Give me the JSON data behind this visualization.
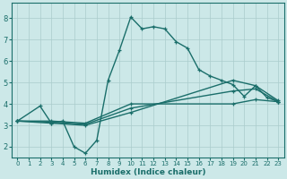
{
  "xlabel": "Humidex (Indice chaleur)",
  "bg_color": "#cce8e8",
  "grid_color": "#aacccc",
  "line_color": "#1a6e6a",
  "xlim": [
    -0.5,
    23.5
  ],
  "ylim": [
    1.5,
    8.7
  ],
  "xticks": [
    0,
    1,
    2,
    3,
    4,
    5,
    6,
    7,
    8,
    9,
    10,
    11,
    12,
    13,
    14,
    15,
    16,
    17,
    18,
    19,
    20,
    21,
    22,
    23
  ],
  "yticks": [
    2,
    3,
    4,
    5,
    6,
    7,
    8
  ],
  "lines": [
    {
      "x": [
        0,
        2,
        3,
        4,
        5,
        6,
        7,
        8,
        9,
        10,
        11,
        12,
        13,
        14,
        15,
        16,
        17,
        18,
        19,
        20,
        21,
        22,
        23
      ],
      "y": [
        3.2,
        3.9,
        3.1,
        3.2,
        2.0,
        1.7,
        2.3,
        5.1,
        6.5,
        8.05,
        7.5,
        7.6,
        7.5,
        6.9,
        6.6,
        5.6,
        5.3,
        5.1,
        4.9,
        4.35,
        4.85,
        4.3,
        4.1
      ]
    },
    {
      "x": [
        0,
        3,
        6,
        10,
        19,
        21,
        23
      ],
      "y": [
        3.2,
        3.1,
        3.0,
        3.6,
        5.1,
        4.85,
        4.15
      ]
    },
    {
      "x": [
        0,
        3,
        6,
        10,
        19,
        21,
        23
      ],
      "y": [
        3.2,
        3.15,
        3.05,
        3.8,
        4.6,
        4.7,
        4.1
      ]
    },
    {
      "x": [
        0,
        3,
        6,
        10,
        19,
        21,
        23
      ],
      "y": [
        3.2,
        3.2,
        3.1,
        4.0,
        4.0,
        4.2,
        4.1
      ]
    }
  ]
}
